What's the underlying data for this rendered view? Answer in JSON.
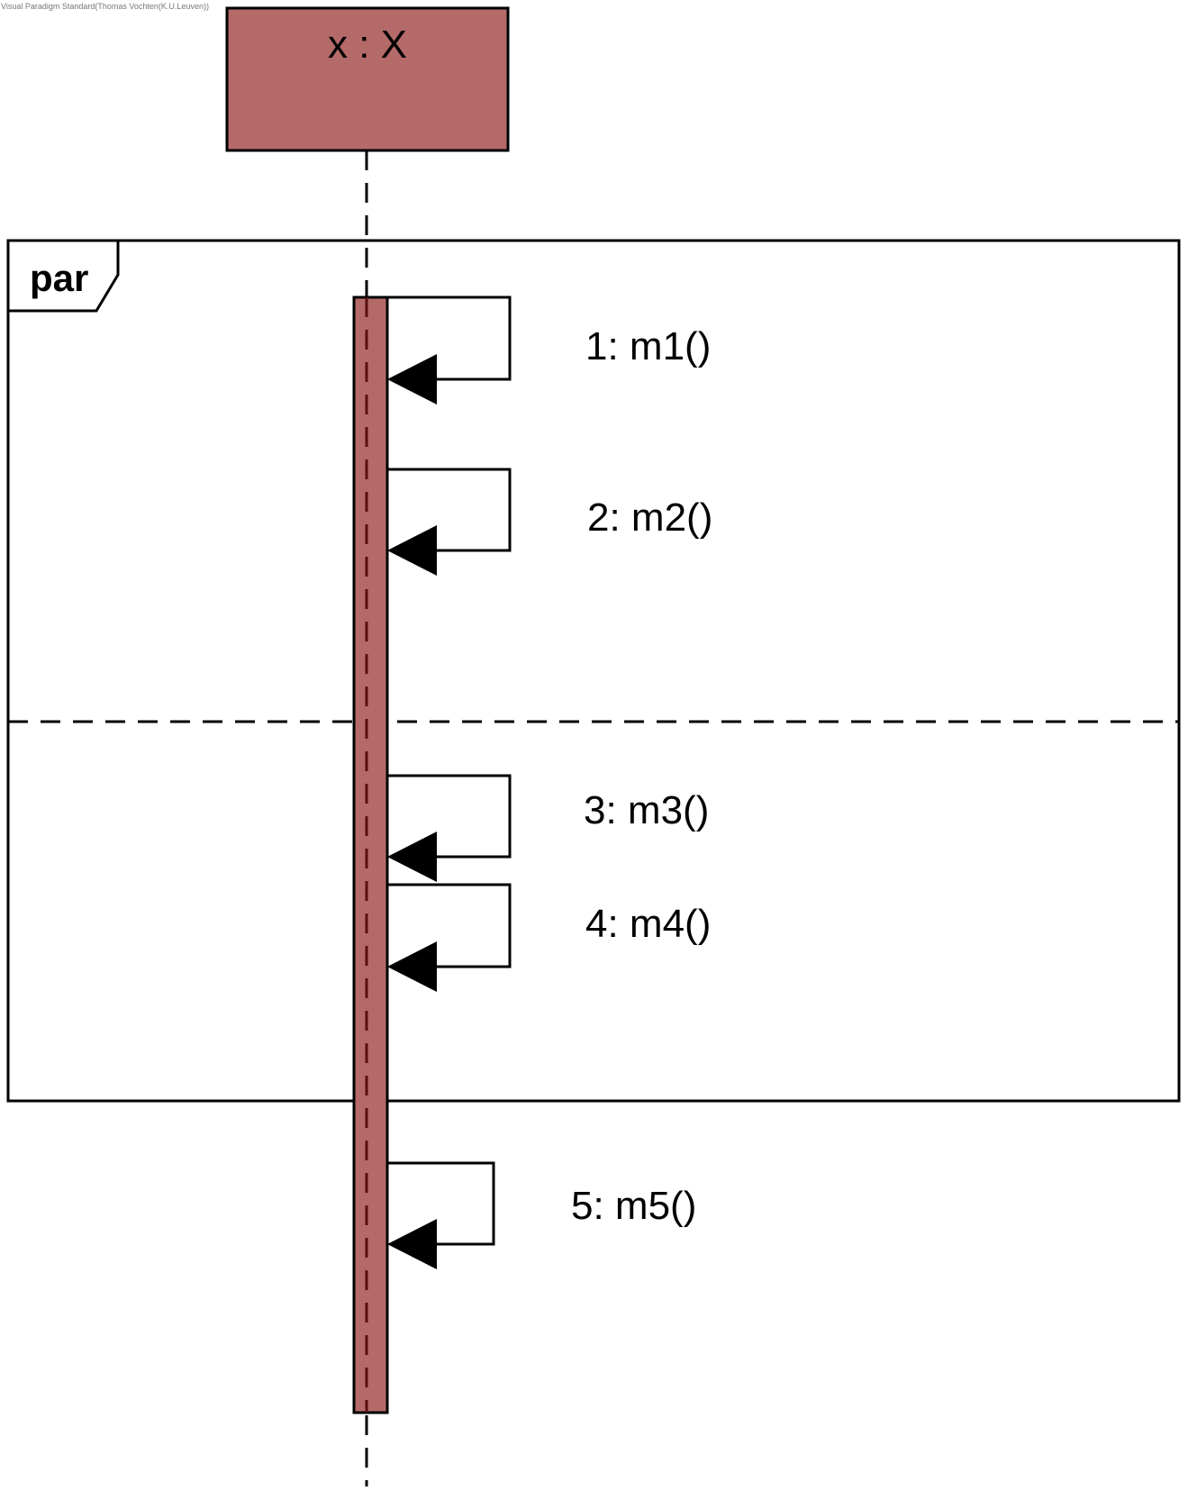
{
  "watermark": "Visual Paradigm Standard(Thomas Vochten(K.U.Leuven))",
  "lifeline": {
    "label": "x : X"
  },
  "fragment": {
    "operator": "par"
  },
  "messages": [
    {
      "label": "1: m1()"
    },
    {
      "label": "2: m2()"
    },
    {
      "label": "3: m3()"
    },
    {
      "label": "4: m4()"
    },
    {
      "label": "5: m5()"
    }
  ],
  "colors": {
    "object_fill": "#b56a6a",
    "activation_fill": "#b56a6a",
    "stroke": "#000000",
    "lifeline_inside_activation": "#5a1010"
  }
}
